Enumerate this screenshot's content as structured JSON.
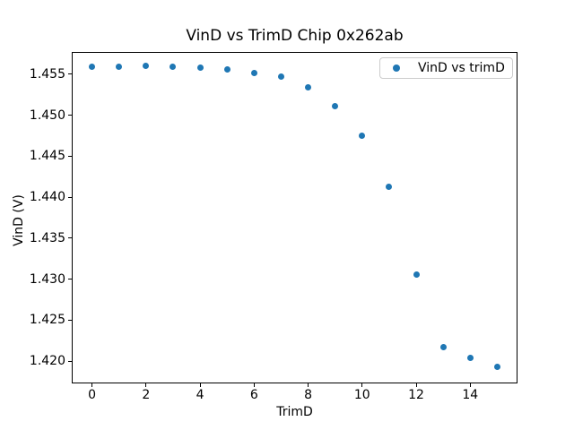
{
  "chart_data": {
    "type": "scatter",
    "title": "VinD vs TrimD Chip 0x262ab",
    "xlabel": "TrimD",
    "ylabel": "VinD (V)",
    "series": [
      {
        "name": "VinD vs trimD",
        "x": [
          0,
          1,
          2,
          3,
          4,
          5,
          6,
          7,
          8,
          9,
          10,
          11,
          12,
          13,
          14,
          15
        ],
        "y": [
          1.4559,
          1.4559,
          1.456,
          1.4559,
          1.4558,
          1.4556,
          1.4551,
          1.4547,
          1.4534,
          1.4511,
          1.4475,
          1.4413,
          1.4306,
          1.4217,
          1.4204,
          1.4193
        ]
      }
    ],
    "xlim": [
      -0.75,
      15.75
    ],
    "ylim": [
      1.4173,
      1.4577
    ],
    "xticks": [
      0,
      2,
      4,
      6,
      8,
      10,
      12,
      14
    ],
    "yticks": [
      1.42,
      1.425,
      1.43,
      1.435,
      1.44,
      1.445,
      1.45,
      1.455
    ],
    "ytick_decimals": 3,
    "grid": false,
    "legend_position": "upper right"
  },
  "legend": {
    "label": "VinD vs trimD"
  },
  "colors": {
    "marker": "#1f77b4",
    "spine": "#000000",
    "text": "#000000",
    "legend_border": "#cccccc",
    "background": "#ffffff"
  }
}
